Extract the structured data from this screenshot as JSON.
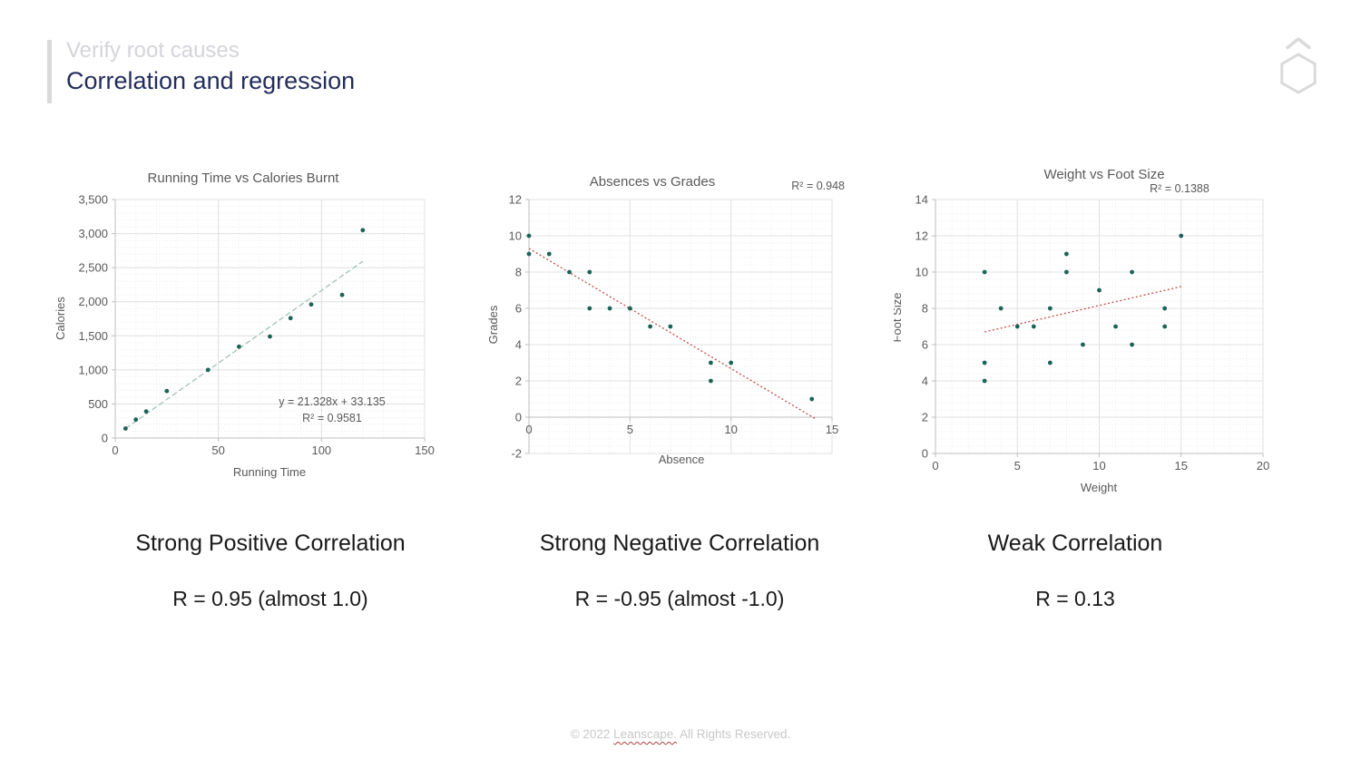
{
  "header": {
    "kicker": "Verify root causes",
    "title": "Correlation and regression"
  },
  "logo": {
    "icon": "hexagon-with-chevron"
  },
  "colors": {
    "point": "#1b6457",
    "trend_positive": "#a3c2b3",
    "trend_negative": "#c0504d",
    "grid_major": "#e0e0e0",
    "grid_minor": "#eeeeee",
    "axis": "#bfbfbf",
    "chart_text": "#595959",
    "title_navy": "#232d5c",
    "kicker_gray": "#d4d4da",
    "footer_gray": "#c8c8c8",
    "spellcheck_red": "#b0413e"
  },
  "chart_data": [
    {
      "type": "scatter",
      "title": "Running Time vs Calories Burnt",
      "xlabel": "Running Time",
      "ylabel": "Calories",
      "xlim": [
        0,
        150
      ],
      "ylim": [
        0,
        3500
      ],
      "xticks": [
        0,
        50,
        100,
        150
      ],
      "yticks": [
        0,
        500,
        1000,
        1500,
        2000,
        2500,
        3000,
        3500
      ],
      "y_tick_format": "comma",
      "x_minor": 10,
      "y_minor": 100,
      "grid": true,
      "points": [
        [
          5,
          140
        ],
        [
          10,
          270
        ],
        [
          15,
          390
        ],
        [
          25,
          690
        ],
        [
          45,
          1000
        ],
        [
          60,
          1340
        ],
        [
          75,
          1490
        ],
        [
          85,
          1760
        ],
        [
          95,
          1960
        ],
        [
          110,
          2100
        ],
        [
          120,
          3050
        ]
      ],
      "trendline": {
        "x1": 5,
        "y1": 140,
        "x2": 120,
        "y2": 2593,
        "color_key": "trend_positive",
        "equation": "y = 21.328x + 33.135",
        "r2": "R² = 0.9581"
      }
    },
    {
      "type": "scatter",
      "title": "Absences vs Grades",
      "xlabel": "Absence",
      "ylabel": "Grades",
      "xlim": [
        0,
        15
      ],
      "ylim": [
        -2,
        12
      ],
      "xticks": [
        0,
        5,
        10,
        15
      ],
      "yticks": [
        -2,
        0,
        2,
        4,
        6,
        8,
        10,
        12
      ],
      "x_minor": 1,
      "y_minor": 0.4,
      "x_axis_at_y": 0,
      "grid": true,
      "points": [
        [
          0,
          10
        ],
        [
          0,
          9
        ],
        [
          1,
          9
        ],
        [
          2,
          8
        ],
        [
          3,
          8
        ],
        [
          3,
          6
        ],
        [
          4,
          6
        ],
        [
          5,
          6
        ],
        [
          6,
          5
        ],
        [
          7,
          5
        ],
        [
          9,
          3
        ],
        [
          10,
          3
        ],
        [
          9,
          2
        ],
        [
          14,
          1
        ]
      ],
      "trendline": {
        "x1": 0,
        "y1": 9.3,
        "x2": 14.2,
        "y2": -0.1,
        "color_key": "trend_negative",
        "r2": "R² = 0.948"
      }
    },
    {
      "type": "scatter",
      "title": "Weight vs Foot Size",
      "xlabel": "Weight",
      "ylabel": "Foot Size",
      "xlim": [
        0,
        20
      ],
      "ylim": [
        0,
        14
      ],
      "xticks": [
        0,
        5,
        10,
        15,
        20
      ],
      "yticks": [
        0,
        2,
        4,
        6,
        8,
        10,
        12,
        14
      ],
      "x_minor": 1,
      "y_minor": 0.4,
      "grid": true,
      "points": [
        [
          3,
          10
        ],
        [
          3,
          5
        ],
        [
          3,
          4
        ],
        [
          4,
          8
        ],
        [
          5,
          7
        ],
        [
          6,
          7
        ],
        [
          7,
          8
        ],
        [
          7,
          5
        ],
        [
          8,
          11
        ],
        [
          8,
          10
        ],
        [
          9,
          6
        ],
        [
          10,
          9
        ],
        [
          11,
          7
        ],
        [
          12,
          10
        ],
        [
          12,
          6
        ],
        [
          14,
          8
        ],
        [
          14,
          7
        ],
        [
          15,
          12
        ]
      ],
      "trendline": {
        "x1": 3,
        "y1": 6.7,
        "x2": 15,
        "y2": 9.2,
        "color_key": "trend_negative",
        "r2": "R² = 0.1388"
      }
    }
  ],
  "captions": [
    {
      "title": "Strong Positive Correlation",
      "r": "R = 0.95 (almost 1.0)"
    },
    {
      "title": "Strong Negative Correlation",
      "r": "R = -0.95 (almost -1.0)"
    },
    {
      "title": "Weak Correlation",
      "r": "R = 0.13"
    }
  ],
  "footer": {
    "prefix": "© 2022 ",
    "brand": "Leanscape.",
    "suffix": " All Rights Reserved."
  }
}
